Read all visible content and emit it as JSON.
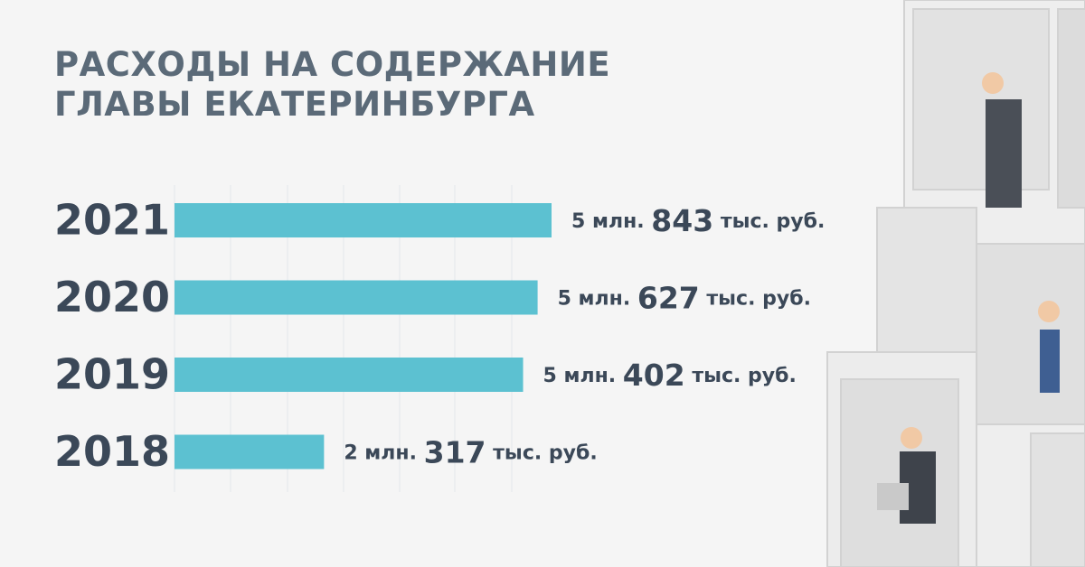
{
  "chart_data": {
    "type": "bar",
    "orientation": "horizontal",
    "title": [
      "РАСХОДЫ НА СОДЕРЖАНИЕ",
      "ГЛАВЫ ЕКАТЕРИНБУРГА"
    ],
    "categories": [
      "2021",
      "2020",
      "2019",
      "2018"
    ],
    "values": [
      5843000,
      5627000,
      5402000,
      2317000
    ],
    "value_labels": [
      "5 млн. 843 тыс. руб.",
      "5 млн. 627 тыс. руб.",
      "5 млн. 402 тыс. руб.",
      "2 млн. 317 тыс. руб."
    ],
    "color": "#5cc1d1"
  }
}
